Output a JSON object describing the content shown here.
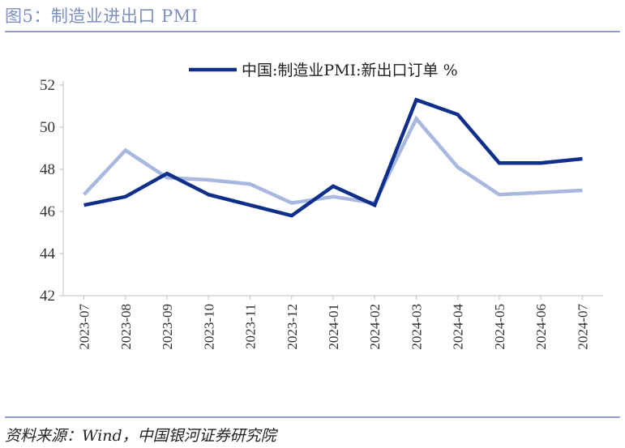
{
  "figure": {
    "title": "图5：制造业进出口 PMI",
    "source": "资料来源：Wind，中国银河证券研究院"
  },
  "colors": {
    "title": "#7d8fc0",
    "rule": "#8d9cc8",
    "series_dark": "#0e2f8a",
    "series_light": "#a8b8e0",
    "axis": "#333333"
  },
  "chart_data": {
    "type": "line",
    "x": [
      "2023-07",
      "2023-08",
      "2023-09",
      "2023-10",
      "2023-11",
      "2023-12",
      "2024-01",
      "2024-02",
      "2024-03",
      "2024-04",
      "2024-05",
      "2024-06",
      "2024-07"
    ],
    "ylim": [
      42,
      52
    ],
    "yticks": [
      42,
      44,
      46,
      48,
      50,
      52
    ],
    "grid": false,
    "legend_position": "top",
    "series": [
      {
        "name": "中国:制造业PMI:新出口订单 %",
        "color": "#0e2f8a",
        "values": [
          46.3,
          46.7,
          47.8,
          46.8,
          46.3,
          45.8,
          47.2,
          46.3,
          51.3,
          50.6,
          48.3,
          48.3,
          48.5
        ]
      },
      {
        "name": "",
        "color": "#a8b8e0",
        "values": [
          46.8,
          48.9,
          47.6,
          47.5,
          47.3,
          46.4,
          46.7,
          46.4,
          50.4,
          48.1,
          46.8,
          46.9,
          47.0
        ]
      }
    ]
  }
}
